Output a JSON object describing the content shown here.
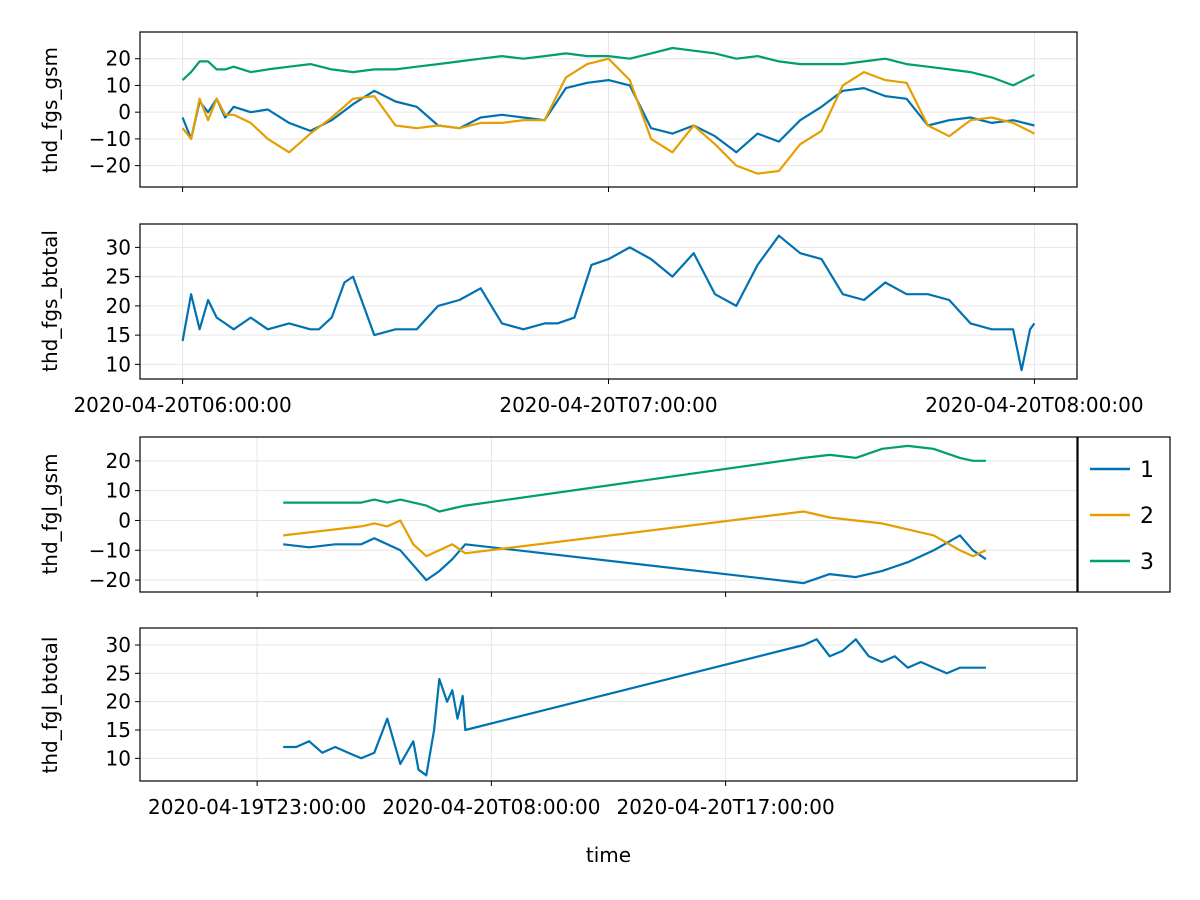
{
  "colors": {
    "s1": "#0072b2",
    "s2": "#e69f00",
    "s3": "#009e73"
  },
  "chart_data": [
    {
      "type": "line",
      "ylabel": "thd_fgs_gsm",
      "ylim": [
        -28,
        30
      ],
      "yticks": [
        -20,
        -10,
        0,
        10,
        20
      ],
      "ytick_labels": [
        "−20",
        "−10",
        "0",
        "10",
        "20"
      ],
      "xlim": [
        -0.1,
        2.1
      ],
      "xticks": [
        0,
        1,
        2
      ],
      "xtick_labels": [],
      "grid": true,
      "series": [
        {
          "name": "1",
          "color": "#0072b2",
          "x": [
            0,
            0.02,
            0.04,
            0.06,
            0.08,
            0.1,
            0.12,
            0.16,
            0.2,
            0.25,
            0.3,
            0.35,
            0.4,
            0.45,
            0.5,
            0.55,
            0.6,
            0.65,
            0.7,
            0.75,
            0.8,
            0.85,
            0.9,
            0.95,
            1.0,
            1.05,
            1.1,
            1.15,
            1.2,
            1.25,
            1.3,
            1.35,
            1.4,
            1.45,
            1.5,
            1.55,
            1.6,
            1.65,
            1.7,
            1.75,
            1.8,
            1.85,
            1.9,
            1.95,
            2.0
          ],
          "y": [
            -2,
            -10,
            4,
            0,
            5,
            -2,
            2,
            0,
            1,
            -4,
            -7,
            -3,
            3,
            8,
            4,
            2,
            -5,
            -6,
            -2,
            -1,
            -2,
            -3,
            9,
            11,
            12,
            10,
            -6,
            -8,
            -5,
            -9,
            -15,
            -8,
            -11,
            -3,
            2,
            8,
            9,
            6,
            5,
            -5,
            -3,
            -2,
            -4,
            -3,
            -5
          ]
        },
        {
          "name": "2",
          "color": "#e69f00",
          "x": [
            0,
            0.02,
            0.04,
            0.06,
            0.08,
            0.1,
            0.12,
            0.16,
            0.2,
            0.25,
            0.3,
            0.35,
            0.4,
            0.45,
            0.5,
            0.55,
            0.6,
            0.65,
            0.7,
            0.75,
            0.8,
            0.85,
            0.9,
            0.95,
            1.0,
            1.05,
            1.1,
            1.15,
            1.2,
            1.25,
            1.3,
            1.35,
            1.4,
            1.45,
            1.5,
            1.55,
            1.6,
            1.65,
            1.7,
            1.75,
            1.8,
            1.85,
            1.9,
            1.95,
            2.0
          ],
          "y": [
            -6,
            -10,
            5,
            -3,
            5,
            -1,
            -1,
            -4,
            -10,
            -15,
            -8,
            -2,
            5,
            6,
            -5,
            -6,
            -5,
            -6,
            -4,
            -4,
            -3,
            -3,
            13,
            18,
            20,
            12,
            -10,
            -15,
            -5,
            -12,
            -20,
            -23,
            -22,
            -12,
            -7,
            10,
            15,
            12,
            11,
            -5,
            -9,
            -3,
            -2,
            -4,
            -8
          ]
        },
        {
          "name": "3",
          "color": "#009e73",
          "x": [
            0,
            0.02,
            0.04,
            0.06,
            0.08,
            0.1,
            0.12,
            0.16,
            0.2,
            0.25,
            0.3,
            0.35,
            0.4,
            0.45,
            0.5,
            0.55,
            0.6,
            0.65,
            0.7,
            0.75,
            0.8,
            0.85,
            0.9,
            0.95,
            1.0,
            1.05,
            1.1,
            1.15,
            1.2,
            1.25,
            1.3,
            1.35,
            1.4,
            1.45,
            1.5,
            1.55,
            1.6,
            1.65,
            1.7,
            1.75,
            1.8,
            1.85,
            1.9,
            1.95,
            2.0
          ],
          "y": [
            12,
            15,
            19,
            19,
            16,
            16,
            17,
            15,
            16,
            17,
            18,
            16,
            15,
            16,
            16,
            17,
            18,
            19,
            20,
            21,
            20,
            21,
            22,
            21,
            21,
            20,
            22,
            24,
            23,
            22,
            20,
            21,
            19,
            18,
            18,
            18,
            19,
            20,
            18,
            17,
            16,
            15,
            13,
            10,
            14
          ]
        }
      ]
    },
    {
      "type": "line",
      "ylabel": "thd_fgs_btotal",
      "ylim": [
        7.5,
        34
      ],
      "yticks": [
        10,
        15,
        20,
        25,
        30
      ],
      "ytick_labels": [
        "10",
        "15",
        "20",
        "25",
        "30"
      ],
      "xlim": [
        -0.1,
        2.1
      ],
      "xticks": [
        0,
        1,
        2
      ],
      "xtick_labels": [
        "2020-04-20T06:00:00",
        "2020-04-20T07:00:00",
        "2020-04-20T08:00:00"
      ],
      "grid": true,
      "series": [
        {
          "name": "1",
          "color": "#0072b2",
          "x": [
            0,
            0.02,
            0.04,
            0.06,
            0.08,
            0.1,
            0.12,
            0.16,
            0.2,
            0.25,
            0.3,
            0.32,
            0.35,
            0.38,
            0.4,
            0.45,
            0.5,
            0.55,
            0.6,
            0.65,
            0.7,
            0.75,
            0.8,
            0.85,
            0.88,
            0.92,
            0.96,
            1.0,
            1.05,
            1.1,
            1.15,
            1.2,
            1.25,
            1.3,
            1.35,
            1.4,
            1.45,
            1.5,
            1.55,
            1.6,
            1.65,
            1.7,
            1.75,
            1.8,
            1.85,
            1.9,
            1.95,
            1.97,
            1.99,
            2.0
          ],
          "y": [
            14,
            22,
            16,
            21,
            18,
            17,
            16,
            18,
            16,
            17,
            16,
            16,
            18,
            24,
            25,
            15,
            16,
            16,
            20,
            21,
            23,
            17,
            16,
            17,
            17,
            18,
            27,
            28,
            30,
            28,
            25,
            29,
            22,
            20,
            27,
            32,
            29,
            28,
            22,
            21,
            24,
            22,
            22,
            21,
            17,
            16,
            16,
            9,
            16,
            17
          ]
        }
      ]
    },
    {
      "type": "line",
      "ylabel": "thd_fgl_gsm",
      "ylim": [
        -24,
        28
      ],
      "yticks": [
        -20,
        -10,
        0,
        10,
        20
      ],
      "ytick_labels": [
        "−20",
        "−10",
        "0",
        "10",
        "20"
      ],
      "xlim": [
        -4.5,
        31.5
      ],
      "xticks": [
        0,
        9,
        18
      ],
      "xtick_labels": [],
      "grid": true,
      "legend": [
        "1",
        "2",
        "3"
      ],
      "legend_position": "right",
      "series": [
        {
          "name": "1",
          "color": "#0072b2",
          "x": [
            1,
            2,
            3,
            4,
            4.5,
            5,
            5.5,
            6,
            6.5,
            7,
            7.5,
            8,
            21,
            22,
            23,
            24,
            25,
            26,
            27,
            27.5,
            28
          ],
          "y": [
            -8,
            -9,
            -8,
            -8,
            -6,
            -8,
            -10,
            -15,
            -20,
            -17,
            -13,
            -8,
            -21,
            -18,
            -19,
            -17,
            -14,
            -10,
            -5,
            -10,
            -13
          ]
        },
        {
          "name": "2",
          "color": "#e69f00",
          "x": [
            1,
            2,
            3,
            4,
            4.5,
            5,
            5.5,
            6,
            6.5,
            7,
            7.5,
            8,
            21,
            22,
            23,
            24,
            25,
            26,
            27,
            27.5,
            28
          ],
          "y": [
            -5,
            -4,
            -3,
            -2,
            -1,
            -2,
            0,
            -8,
            -12,
            -10,
            -8,
            -11,
            3,
            1,
            0,
            -1,
            -3,
            -5,
            -10,
            -12,
            -10
          ]
        },
        {
          "name": "3",
          "color": "#009e73",
          "x": [
            1,
            2,
            3,
            4,
            4.5,
            5,
            5.5,
            6,
            6.5,
            7,
            7.5,
            8,
            21,
            22,
            23,
            24,
            25,
            26,
            27,
            27.5,
            28
          ],
          "y": [
            6,
            6,
            6,
            6,
            7,
            6,
            7,
            6,
            5,
            3,
            4,
            5,
            21,
            22,
            21,
            24,
            25,
            24,
            21,
            20,
            20
          ]
        }
      ]
    },
    {
      "type": "line",
      "ylabel": "thd_fgl_btotal",
      "ylim": [
        6,
        33
      ],
      "yticks": [
        10,
        15,
        20,
        25,
        30
      ],
      "ytick_labels": [
        "10",
        "15",
        "20",
        "25",
        "30"
      ],
      "xlim": [
        -4.5,
        31.5
      ],
      "xticks": [
        0,
        9,
        18
      ],
      "xtick_labels": [
        "2020-04-19T23:00:00",
        "2020-04-20T08:00:00",
        "2020-04-20T17:00:00"
      ],
      "xlabel": "time",
      "grid": true,
      "series": [
        {
          "name": "1",
          "color": "#0072b2",
          "x": [
            1,
            1.5,
            2,
            2.5,
            3,
            3.5,
            4,
            4.5,
            5,
            5.5,
            6,
            6.2,
            6.5,
            6.8,
            7,
            7.3,
            7.5,
            7.7,
            7.9,
            8,
            21,
            21.5,
            22,
            22.5,
            23,
            23.5,
            24,
            24.5,
            25,
            25.5,
            26,
            26.5,
            27,
            27.5,
            28
          ],
          "y": [
            12,
            12,
            13,
            11,
            12,
            11,
            10,
            11,
            17,
            9,
            13,
            8,
            7,
            15,
            24,
            20,
            22,
            17,
            21,
            15,
            30,
            31,
            28,
            29,
            31,
            28,
            27,
            28,
            26,
            27,
            26,
            25,
            26,
            26,
            26
          ]
        }
      ]
    }
  ],
  "legend": {
    "entries": [
      "1",
      "2",
      "3"
    ]
  }
}
